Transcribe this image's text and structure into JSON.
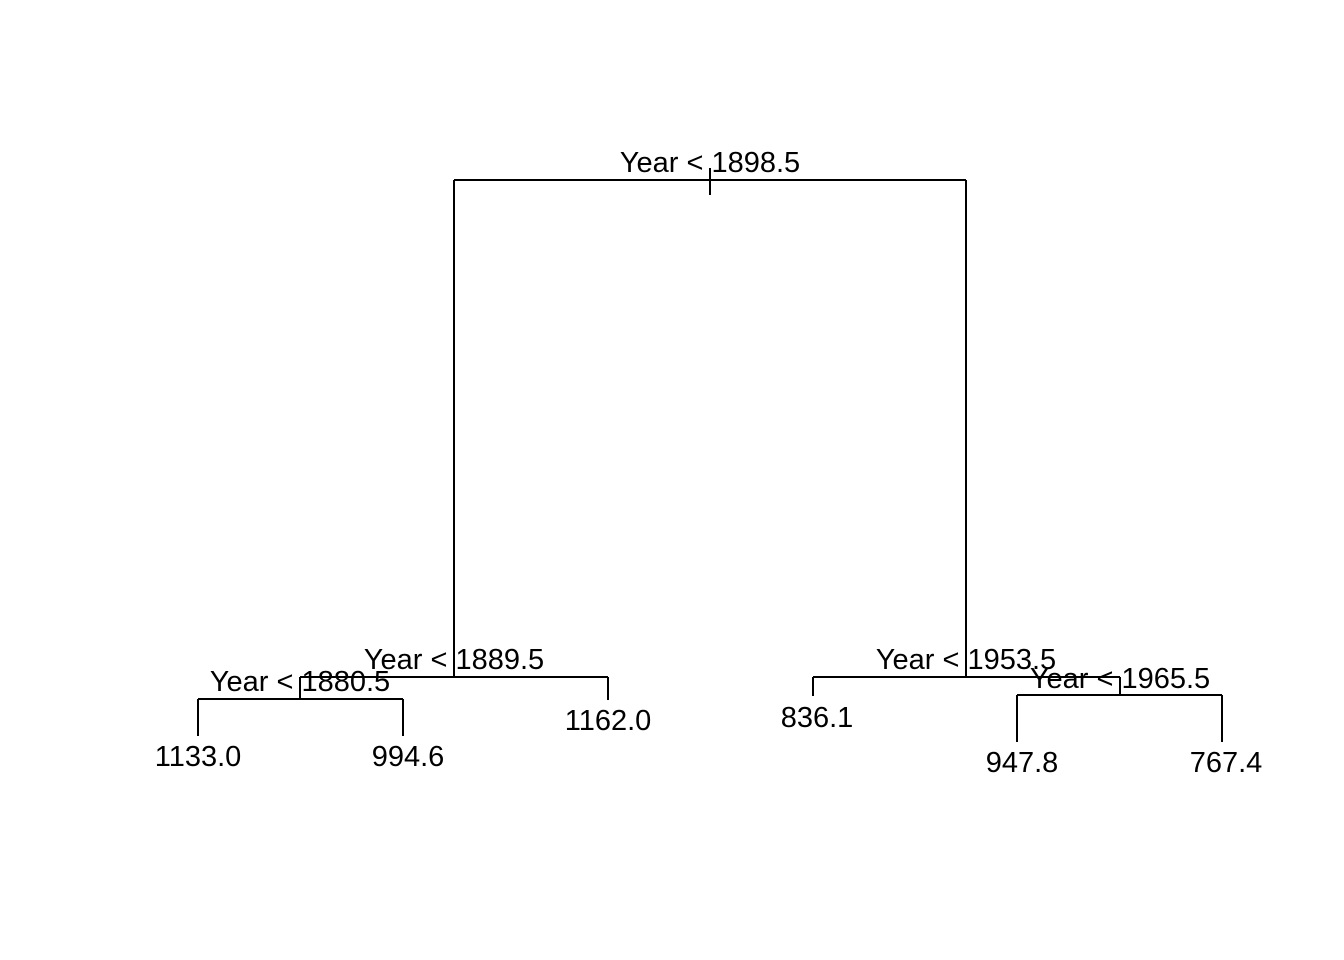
{
  "tree": {
    "root_split": "Year < 1898.5",
    "left_split": "Year < 1889.5",
    "left_left_split": "Year < 1880.5",
    "right_split": "Year < 1953.5",
    "right_right_split": "Year < 1965.5",
    "leaves": {
      "leaf_1": "1133.0",
      "leaf_2": "994.6",
      "leaf_3": "1162.0",
      "leaf_4": "836.1",
      "leaf_5": "947.8",
      "leaf_6": "767.4"
    }
  },
  "colors": {
    "line": "#000000",
    "background": "#ffffff"
  }
}
